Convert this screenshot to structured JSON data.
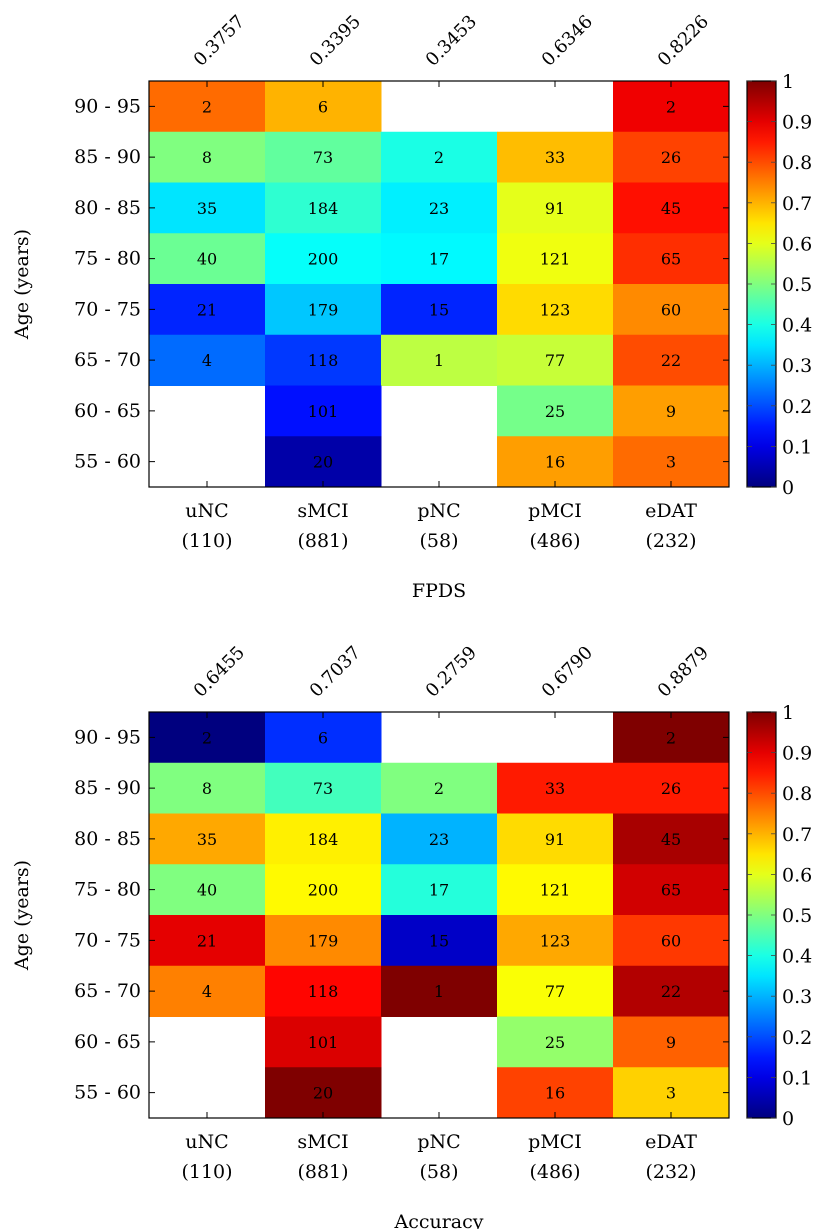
{
  "chart_data": [
    {
      "type": "heatmap",
      "title": "",
      "xlabel": "FPDS",
      "ylabel": "Age (years)",
      "x_categories": [
        "uNC",
        "sMCI",
        "pNC",
        "pMCI",
        "eDAT"
      ],
      "x_counts": [
        "(110)",
        "(881)",
        "(58)",
        "(486)",
        "(232)"
      ],
      "y_categories": [
        "90 - 95",
        "85 - 90",
        "80 - 85",
        "75 - 80",
        "70 - 75",
        "65 - 70",
        "60 - 65",
        "55 - 60"
      ],
      "column_scores": [
        "0.3757",
        "0.3395",
        "0.3453",
        "0.6346",
        "0.8226"
      ],
      "counts": [
        [
          2,
          6,
          null,
          null,
          2
        ],
        [
          8,
          73,
          2,
          33,
          26
        ],
        [
          35,
          184,
          23,
          91,
          45
        ],
        [
          40,
          200,
          17,
          121,
          65
        ],
        [
          21,
          179,
          15,
          123,
          60
        ],
        [
          4,
          118,
          1,
          77,
          22
        ],
        [
          null,
          101,
          null,
          25,
          9
        ],
        [
          null,
          20,
          null,
          16,
          3
        ]
      ],
      "values": [
        [
          0.77,
          0.7,
          null,
          null,
          0.89
        ],
        [
          0.5,
          0.47,
          0.4,
          0.69,
          0.81
        ],
        [
          0.35,
          0.42,
          0.36,
          0.6,
          0.86
        ],
        [
          0.48,
          0.38,
          0.37,
          0.61,
          0.83
        ],
        [
          0.16,
          0.32,
          0.16,
          0.66,
          0.74
        ],
        [
          0.23,
          0.18,
          0.56,
          0.57,
          0.8
        ],
        [
          null,
          0.14,
          null,
          0.49,
          0.72
        ],
        [
          null,
          0.04,
          null,
          0.72,
          0.77
        ]
      ],
      "colorbar": {
        "range": [
          0,
          1
        ],
        "ticks": [
          "0",
          "0.1",
          "0.2",
          "0.3",
          "0.4",
          "0.5",
          "0.6",
          "0.7",
          "0.8",
          "0.9",
          "1"
        ]
      },
      "colormap": "jet"
    },
    {
      "type": "heatmap",
      "title": "",
      "xlabel": "Accuracy",
      "ylabel": "Age (years)",
      "x_categories": [
        "uNC",
        "sMCI",
        "pNC",
        "pMCI",
        "eDAT"
      ],
      "x_counts": [
        "(110)",
        "(881)",
        "(58)",
        "(486)",
        "(232)"
      ],
      "y_categories": [
        "90 - 95",
        "85 - 90",
        "80 - 85",
        "75 - 80",
        "70 - 75",
        "65 - 70",
        "60 - 65",
        "55 - 60"
      ],
      "column_scores": [
        "0.6455",
        "0.7037",
        "0.2759",
        "0.6790",
        "0.8879"
      ],
      "counts": [
        [
          2,
          6,
          null,
          null,
          2
        ],
        [
          8,
          73,
          2,
          33,
          26
        ],
        [
          35,
          184,
          23,
          91,
          45
        ],
        [
          40,
          200,
          17,
          121,
          65
        ],
        [
          21,
          179,
          15,
          123,
          60
        ],
        [
          4,
          118,
          1,
          77,
          22
        ],
        [
          null,
          101,
          null,
          25,
          9
        ],
        [
          null,
          20,
          null,
          16,
          3
        ]
      ],
      "values": [
        [
          0.0,
          0.17,
          null,
          null,
          1.0
        ],
        [
          0.5,
          0.44,
          0.5,
          0.85,
          0.85
        ],
        [
          0.71,
          0.64,
          0.3,
          0.66,
          0.96
        ],
        [
          0.5,
          0.63,
          0.41,
          0.63,
          0.92
        ],
        [
          0.9,
          0.74,
          0.07,
          0.71,
          0.82
        ],
        [
          0.75,
          0.87,
          1.0,
          0.62,
          0.95
        ],
        [
          null,
          0.91,
          null,
          0.52,
          0.78
        ],
        [
          null,
          1.0,
          null,
          0.81,
          0.67
        ]
      ],
      "colorbar": {
        "range": [
          0,
          1
        ],
        "ticks": [
          "0",
          "0.1",
          "0.2",
          "0.3",
          "0.4",
          "0.5",
          "0.6",
          "0.7",
          "0.8",
          "0.9",
          "1"
        ]
      },
      "colormap": "jet"
    }
  ]
}
